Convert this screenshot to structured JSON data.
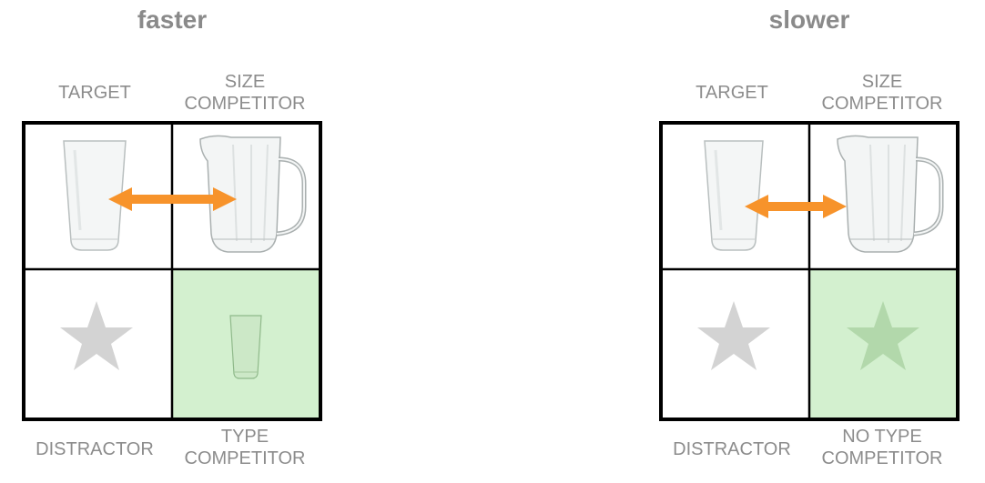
{
  "panels": [
    {
      "title": "faster",
      "labels": {
        "target": "TARGET",
        "size_competitor": [
          "SIZE",
          "COMPETITOR"
        ],
        "distractor": "DISTRACTOR",
        "bottom_right": [
          "TYPE",
          "COMPETITOR"
        ]
      },
      "bottom_right_content": "small-glass-icon"
    },
    {
      "title": "slower",
      "labels": {
        "target": "TARGET",
        "size_competitor": [
          "SIZE",
          "COMPETITOR"
        ],
        "distractor": "DISTRACTOR",
        "bottom_right": [
          "NO TYPE",
          "COMPETITOR"
        ]
      },
      "bottom_right_content": "star-icon"
    }
  ],
  "colors": {
    "arrow": "#f7932b",
    "highlight": "#d3f0cf",
    "star_gray": "#d3d3d3",
    "star_green": "#b2d8ab",
    "label_gray": "#8c8c8c"
  }
}
